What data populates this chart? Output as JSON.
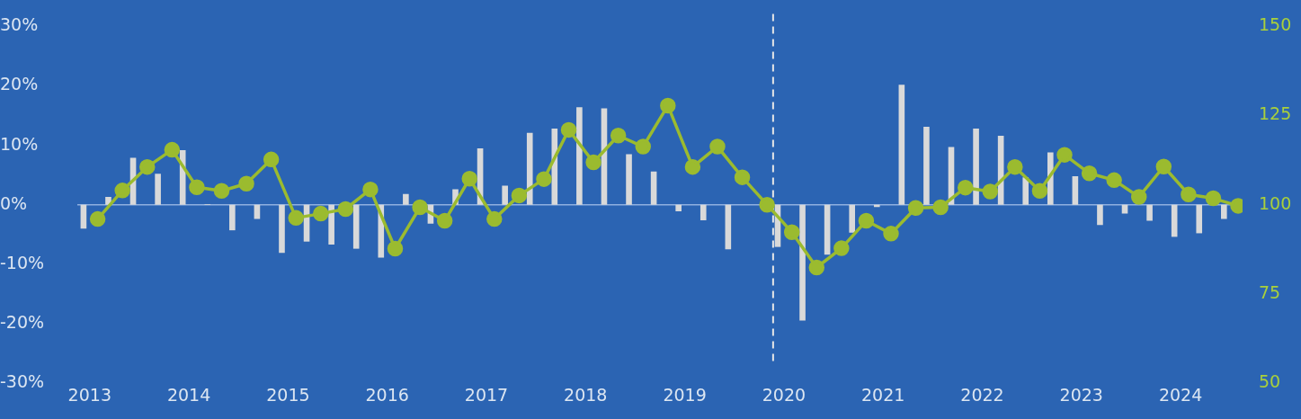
{
  "chart_data": {
    "type": "bar",
    "categories": [
      "2013",
      null,
      null,
      null,
      "2014",
      null,
      null,
      null,
      "2015",
      null,
      null,
      null,
      "2016",
      null,
      null,
      null,
      "2017",
      null,
      null,
      null,
      "2018",
      null,
      null,
      null,
      "2019",
      null,
      null,
      null,
      "2020",
      null,
      null,
      null,
      "2021",
      null,
      null,
      null,
      "2022",
      null,
      null,
      null,
      "2023",
      null,
      null,
      null,
      "2024",
      null,
      null
    ],
    "series": [
      {
        "color": "#d9d9d9",
        "values": [
          -4.0,
          1.3,
          7.9,
          5.2,
          9.2,
          0.1,
          -4.3,
          -2.4,
          -8.1,
          -6.2,
          -6.7,
          -7.4,
          -8.9,
          1.8,
          -3.2,
          2.6,
          9.5,
          3.2,
          12.1,
          12.8,
          16.4,
          16.2,
          8.5,
          5.6,
          -1.1,
          -2.6,
          -7.5,
          null,
          -7.1,
          -19.5,
          -8.4,
          -4.7,
          -0.4,
          20.2,
          13.1,
          9.7,
          12.8,
          11.6,
          4.6,
          8.8,
          4.8,
          -3.4,
          -1.5,
          -2.7,
          -5.4,
          -4.8,
          -2.4
        ]
      },
      {
        "type": "line",
        "axis": "y2",
        "color": "#9bbb2f",
        "marker": "circle",
        "line_style": "solid",
        "values": [
          96,
          104,
          110.6,
          115.4,
          104.9,
          103.9,
          105.9,
          112.7,
          96.3,
          97.5,
          98.8,
          104.3,
          87.7,
          99.3,
          95.5,
          107.3,
          96,
          102.6,
          107.2,
          121,
          111.9,
          119.4,
          116.3,
          127.8,
          110.6,
          116.3,
          107.7,
          100,
          92.3,
          82.4,
          87.8,
          95.5,
          91.9,
          99.1,
          99.3,
          104.8,
          103.7,
          110.6,
          103.9,
          114,
          108.8,
          106.9,
          102.2,
          110.7,
          102.9,
          101.8,
          99.7
        ]
      }
    ],
    "ylim": [
      -30,
      30
    ],
    "yticks": [
      {
        "value": -30,
        "label": "-30%"
      },
      {
        "value": -20,
        "label": "-20%"
      },
      {
        "value": -10,
        "label": "-10%"
      },
      {
        "value": 0,
        "label": "0%"
      },
      {
        "value": 10,
        "label": "10%"
      },
      {
        "value": 20,
        "label": "20%"
      },
      {
        "value": 30,
        "label": "30%"
      }
    ],
    "y2lim": [
      50,
      150
    ],
    "y2ticks": [
      50,
      75,
      100,
      125,
      150
    ],
    "ref_lines": [
      {
        "axis": "x",
        "value": "2020",
        "color": "#e6e6e6",
        "line_style": "dashed"
      },
      {
        "axis": "y",
        "value": 0,
        "color": "#8fb0e0",
        "line_style": "solid"
      }
    ],
    "grid": false,
    "legend": false
  }
}
